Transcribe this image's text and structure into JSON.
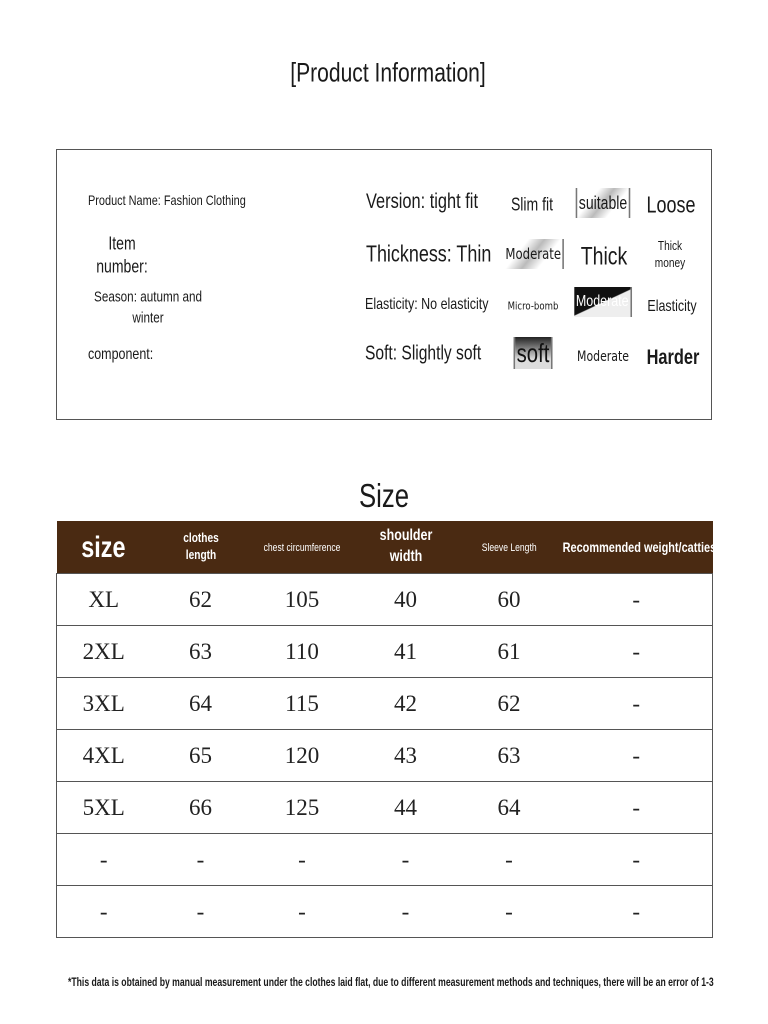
{
  "title": "[Product Information]",
  "info": {
    "product_name": "Product Name: Fashion Clothing",
    "item_number": "Item",
    "item_number2": "number:",
    "season": "Season: autumn and",
    "season2": "winter",
    "component": "component:"
  },
  "attributes": [
    {
      "label": "Version: tight fit",
      "options": [
        "Slim fit",
        "suitable",
        "Loose"
      ],
      "selected": "suitable"
    },
    {
      "label": "Thickness: Thin",
      "options": [
        "Moderate",
        "Thick",
        "Thick money"
      ],
      "selected": "Moderate"
    },
    {
      "label": "Elasticity: No elasticity",
      "options": [
        "Micro-bomb",
        "Moderate",
        "Elasticity"
      ],
      "selected": "Moderate"
    },
    {
      "label": "Soft: Slightly soft",
      "options": [
        "soft",
        "Moderate",
        "Harder"
      ],
      "selected": "soft"
    }
  ],
  "size_title": "Size",
  "table": {
    "header_color": "#4a2a12",
    "columns": [
      "size",
      "clothes length",
      "chest circumference",
      "shoulder width",
      "Sleeve Length",
      "Recommended weight/catties"
    ],
    "rows": [
      [
        "XL",
        "62",
        "105",
        "40",
        "60",
        "-"
      ],
      [
        "2XL",
        "63",
        "110",
        "41",
        "61",
        "-"
      ],
      [
        "3XL",
        "64",
        "115",
        "42",
        "62",
        "-"
      ],
      [
        "4XL",
        "65",
        "120",
        "43",
        "63",
        "-"
      ],
      [
        "5XL",
        "66",
        "125",
        "44",
        "64",
        "-"
      ],
      [
        "-",
        "-",
        "-",
        "-",
        "-",
        "-"
      ],
      [
        "-",
        "-",
        "-",
        "-",
        "-",
        "-"
      ]
    ]
  },
  "footnote": "*This data is obtained by manual measurement under the clothes laid flat, due to different measurement methods and techniques, there will be an error of 1-3"
}
